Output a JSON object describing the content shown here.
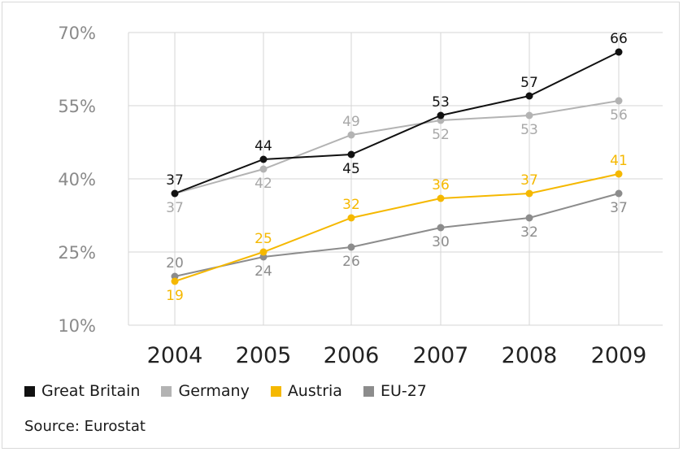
{
  "chart_data": {
    "type": "line",
    "categories": [
      "2004",
      "2005",
      "2006",
      "2007",
      "2008",
      "2009"
    ],
    "yticks": [
      "10%",
      "25%",
      "40%",
      "55%",
      "70%"
    ],
    "ytick_values": [
      10,
      25,
      40,
      55,
      70
    ],
    "ylim": [
      10,
      70
    ],
    "grid": true,
    "legend_position": "bottom-left",
    "series": [
      {
        "name": "Great Britain",
        "color": "#111111",
        "label_color": "#111111",
        "values": [
          37,
          44,
          45,
          53,
          57,
          66
        ],
        "label_pos": [
          "above",
          "above",
          "below",
          "above",
          "above",
          "above"
        ]
      },
      {
        "name": "Germany",
        "color": "#b3b3b3",
        "label_color": "#a8a8a8",
        "values": [
          37,
          42,
          49,
          52,
          53,
          56
        ],
        "label_pos": [
          "below",
          "below",
          "above",
          "below",
          "below",
          "below"
        ]
      },
      {
        "name": "Austria",
        "color": "#f5b800",
        "label_color": "#f5b800",
        "values": [
          19,
          25,
          32,
          36,
          37,
          41
        ],
        "label_pos": [
          "below",
          "above",
          "above",
          "above",
          "above",
          "above"
        ]
      },
      {
        "name": "EU-27",
        "color": "#8c8c8c",
        "label_color": "#8c8c8c",
        "values": [
          20,
          24,
          26,
          30,
          32,
          37
        ],
        "label_pos": [
          "above",
          "below",
          "below",
          "below",
          "below",
          "below"
        ]
      }
    ]
  },
  "source": "Source: Eurostat"
}
